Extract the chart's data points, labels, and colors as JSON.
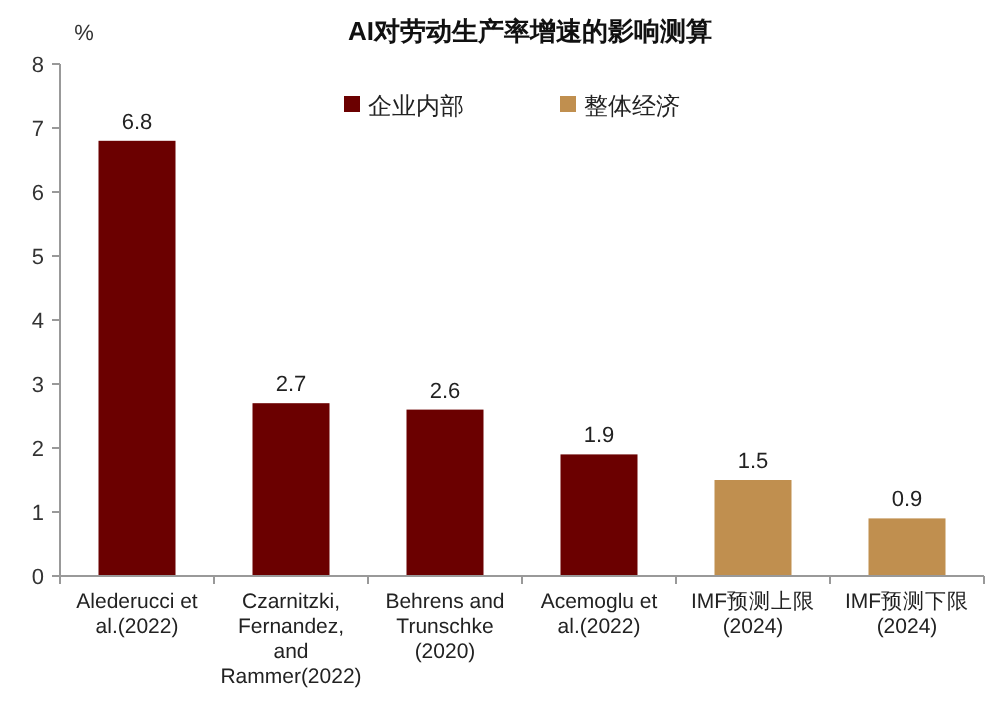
{
  "chart_data": {
    "type": "bar",
    "title": "AI对劳动生产率增速的影响测算",
    "ylabel": "%",
    "categories": [
      "Alederucci et al.(2022)",
      "Czarnitzki, Fernandez, and Rammer(2022)",
      "Behrens and Trunschke (2020)",
      "Acemoglu et al.(2022)",
      "IMF预测上限 (2024)",
      "IMF预测下限 (2024)"
    ],
    "series": [
      {
        "name": "企业内部",
        "color": "#6b0000",
        "values": [
          6.8,
          2.7,
          2.6,
          1.9,
          null,
          null
        ]
      },
      {
        "name": "整体经济",
        "color": "#c08f4f",
        "values": [
          null,
          null,
          null,
          null,
          1.5,
          0.9
        ]
      }
    ],
    "ylim": [
      0,
      8
    ],
    "yticks": [
      0,
      1,
      2,
      3,
      4,
      5,
      6,
      7,
      8
    ],
    "data_labels": true,
    "legend": "top",
    "grid": false
  }
}
